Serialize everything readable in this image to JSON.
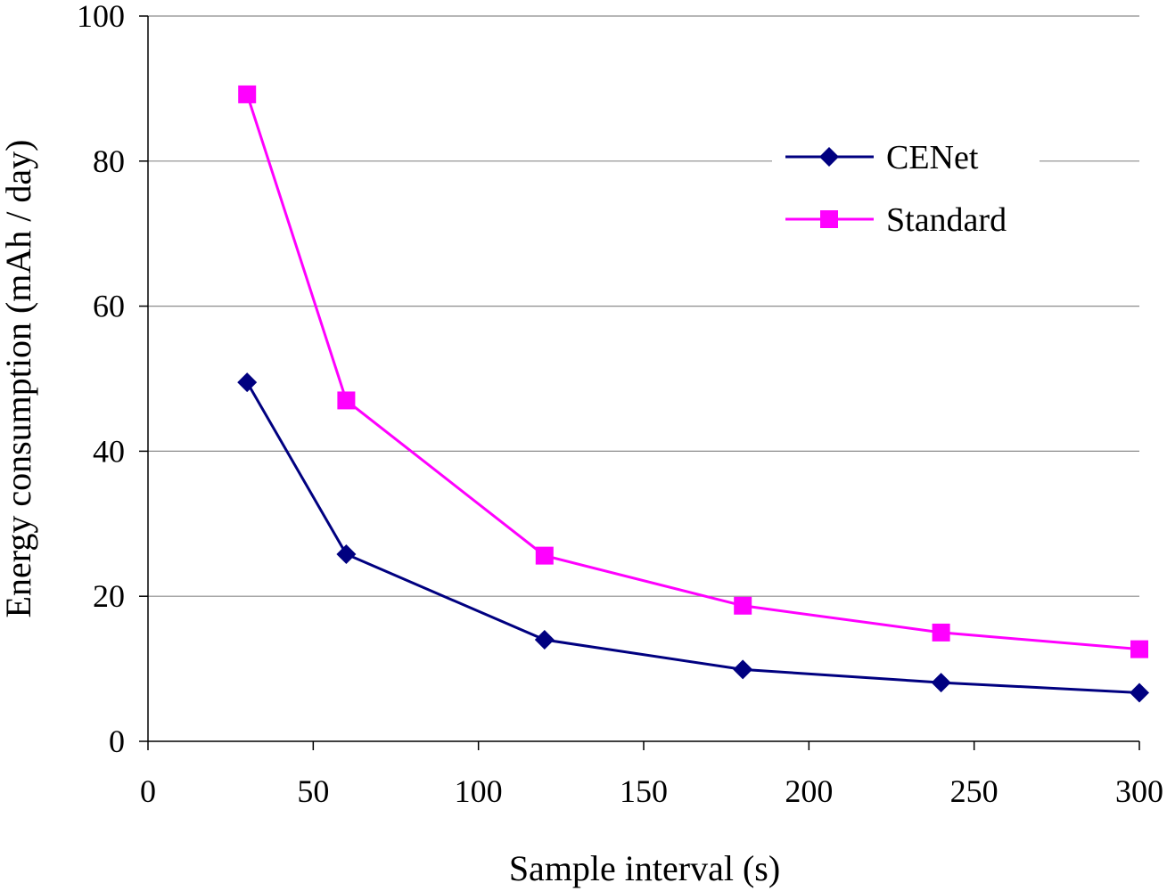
{
  "chart_data": {
    "type": "line",
    "title": "",
    "xlabel": "Sample interval (s)",
    "ylabel": "Energy consumption (mAh / day)",
    "xlim": [
      0,
      300
    ],
    "ylim": [
      0,
      100
    ],
    "xticks": [
      0,
      50,
      100,
      150,
      200,
      250,
      300
    ],
    "yticks": [
      0,
      20,
      40,
      60,
      80,
      100
    ],
    "grid": "horizontal",
    "legend_position": "top-right",
    "x": [
      30,
      60,
      120,
      180,
      240,
      300
    ],
    "series": [
      {
        "name": "CENet",
        "color": "#000080",
        "marker": "diamond",
        "values": [
          49.5,
          25.8,
          14.0,
          9.9,
          8.1,
          6.7
        ]
      },
      {
        "name": "Standard",
        "color": "#FF00FF",
        "marker": "square",
        "values": [
          89.2,
          47.0,
          25.6,
          18.7,
          15.0,
          12.7
        ]
      }
    ]
  }
}
